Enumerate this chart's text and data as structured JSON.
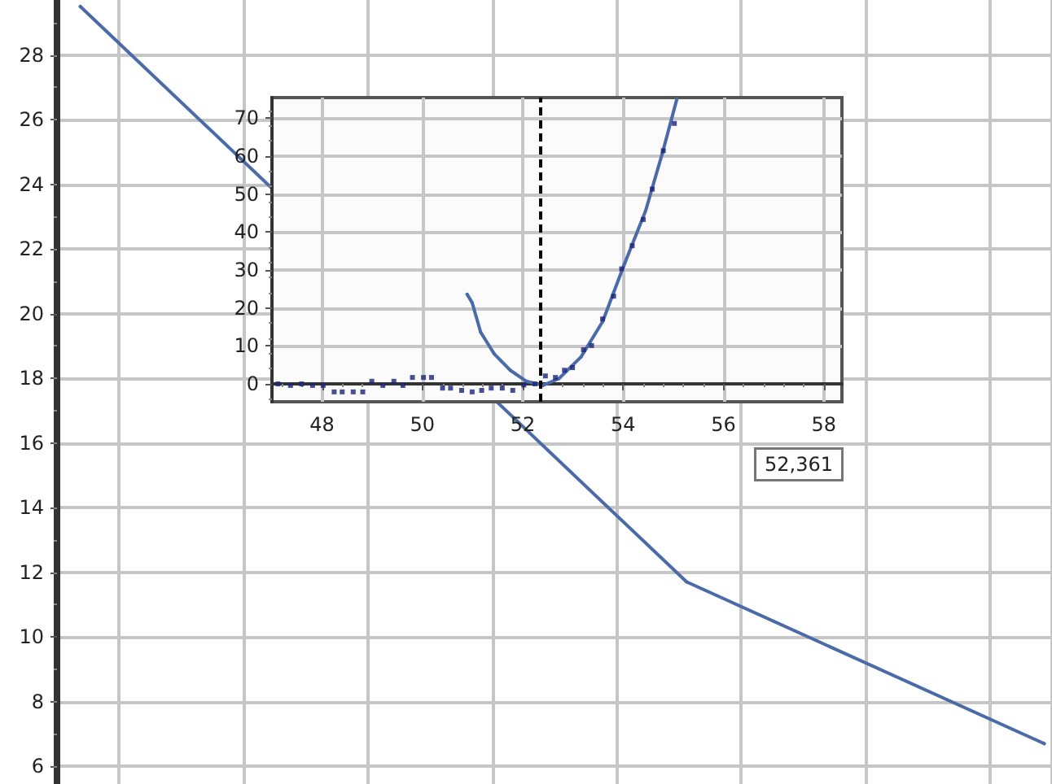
{
  "chart_data": [
    {
      "type": "line",
      "categories": [
        null,
        null,
        null,
        null,
        null,
        null,
        null,
        null,
        null,
        null,
        null,
        null,
        null,
        null,
        null,
        null,
        null,
        null,
        null,
        null,
        null,
        null,
        null,
        null,
        null,
        null,
        null,
        null,
        null,
        null,
        null,
        null,
        null,
        null,
        null,
        null,
        null,
        null,
        null,
        null,
        null,
        null,
        null,
        null,
        null,
        null,
        null,
        null,
        null,
        null,
        null,
        null,
        null,
        null,
        null,
        null,
        null,
        null,
        null,
        null,
        null,
        null,
        null,
        null
      ],
      "values": [
        null,
        29.5,
        null,
        null,
        null,
        null,
        null,
        null,
        null,
        null,
        null,
        null,
        null,
        null,
        null,
        null,
        null,
        null,
        null,
        null,
        null,
        null,
        null,
        null,
        null,
        null,
        null,
        null,
        null,
        null,
        null,
        null,
        null,
        null,
        null,
        null,
        null,
        null,
        null,
        null,
        11.7,
        null,
        null,
        null,
        null,
        null,
        null,
        null,
        null,
        null,
        null,
        null,
        null,
        null,
        null,
        null,
        null,
        null,
        null,
        null,
        null,
        null,
        null,
        6.7
      ],
      "color": "#4a6aa8",
      "ylim": [
        5.45,
        29.7
      ],
      "yticks": [
        6,
        8,
        10,
        12,
        14,
        16,
        18,
        20,
        22,
        24,
        26,
        28
      ],
      "grid": true,
      "tick_labels": "y",
      "marker": "none"
    },
    {
      "type": "line",
      "xlim": [
        47,
        58.36
      ],
      "xticks": [
        48,
        50,
        52,
        54,
        56,
        58
      ],
      "ylim": [
        -4.7,
        75.4
      ],
      "yticks": [
        0,
        10,
        20,
        30,
        40,
        50,
        60,
        70
      ],
      "grid": true,
      "series": [
        {
          "type": "line",
          "color": "#4a6aa8",
          "marker": "none",
          "x": [
            50.89,
            50.99,
            51.16,
            51.43,
            51.75,
            52.07,
            52.4,
            52.72,
            53.16,
            53.59,
            54.02,
            54.45,
            54.78,
            55.07
          ],
          "values": [
            23.6,
            21.4,
            13.6,
            7.9,
            3.6,
            0.7,
            -0.4,
            1.4,
            7.1,
            16.4,
            31.4,
            45.7,
            60.7,
            75
          ]
        },
        {
          "type": "scatter",
          "color": "#1a237e",
          "marker": "square",
          "x": [
            47.12,
            47.37,
            47.59,
            47.81,
            48.02,
            48.24,
            48.4,
            48.62,
            48.81,
            48.99,
            49.21,
            49.43,
            49.61,
            49.8,
            50.02,
            50.18,
            50.4,
            50.56,
            50.78,
            50.99,
            51.18,
            51.37,
            51.59,
            51.8,
            52.02,
            52.24,
            52.45,
            52.65,
            52.83,
            52.99,
            53.21,
            53.37,
            53.59,
            53.81,
            53.97,
            54.18,
            54.4,
            54.58,
            54.8,
            55.02
          ],
          "values": [
            0,
            -0.4,
            0,
            -0.4,
            -0.4,
            -2.1,
            -2.1,
            -2.1,
            -2.1,
            0.7,
            -0.4,
            0.7,
            -0.4,
            1.7,
            1.7,
            1.7,
            -1.1,
            -1.1,
            -1.7,
            -2.1,
            -1.7,
            -1.1,
            -1.1,
            -1.7,
            -0.3,
            0,
            2.1,
            1.7,
            3.6,
            4.3,
            9,
            10.1,
            17.1,
            23.1,
            30.3,
            36.4,
            43.3,
            51.3,
            61.4,
            68.6
          ]
        }
      ],
      "ref_lines": [
        {
          "axis": "x",
          "value": 52.361,
          "color": "#000000",
          "line_style": "dashed"
        }
      ],
      "annotations": [
        "52,361"
      ]
    }
  ]
}
